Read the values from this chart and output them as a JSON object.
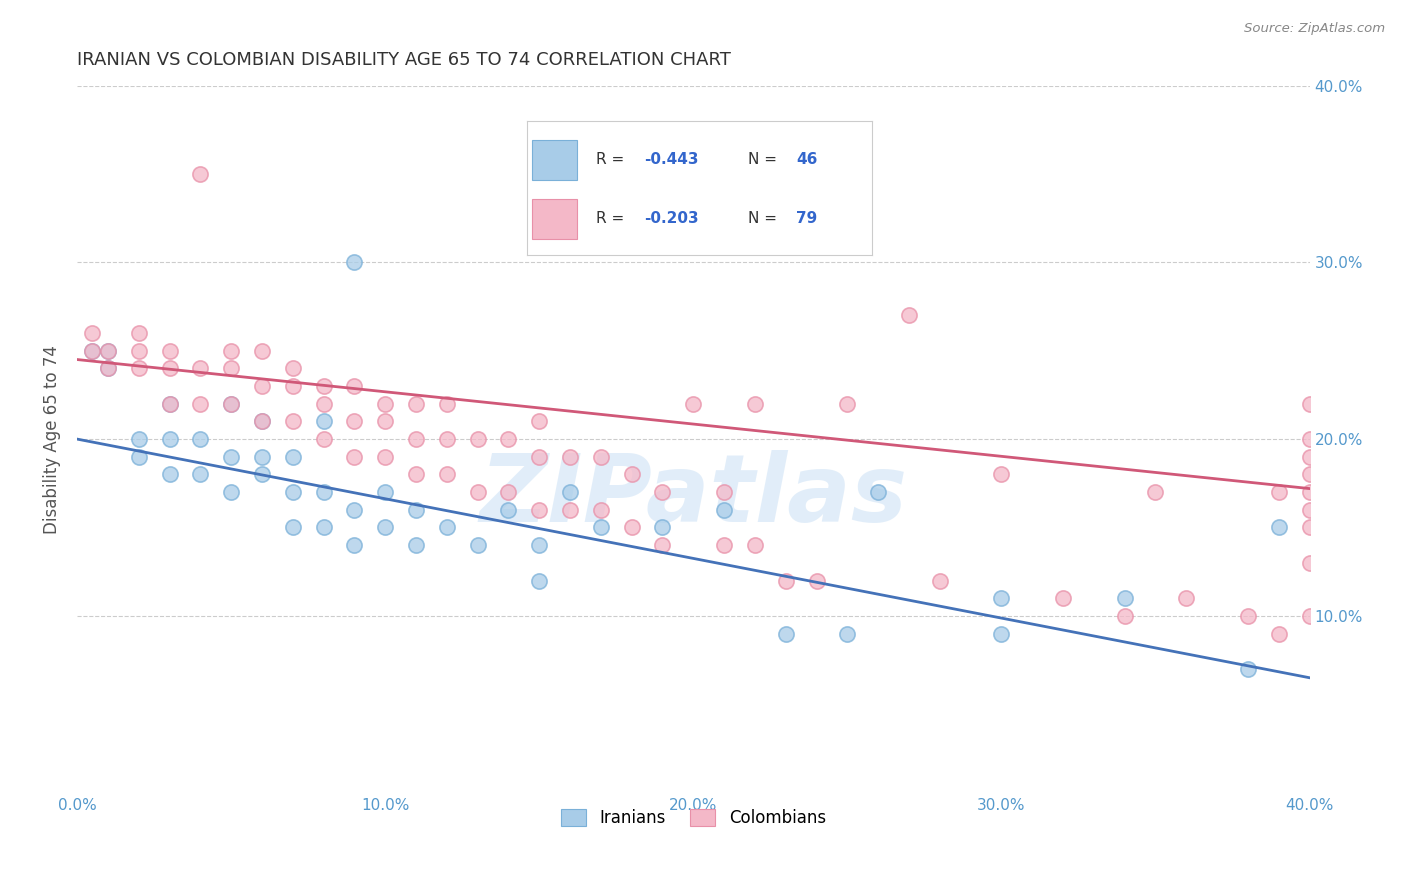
{
  "title": "IRANIAN VS COLOMBIAN DISABILITY AGE 65 TO 74 CORRELATION CHART",
  "source": "Source: ZipAtlas.com",
  "ylabel": "Disability Age 65 to 74",
  "xlim": [
    0.0,
    0.4
  ],
  "ylim": [
    0.0,
    0.4
  ],
  "xtick_labels": [
    "0.0%",
    "10.0%",
    "20.0%",
    "30.0%",
    "40.0%"
  ],
  "xtick_vals": [
    0.0,
    0.1,
    0.2,
    0.3,
    0.4
  ],
  "ytick_labels_right": [
    "10.0%",
    "20.0%",
    "30.0%",
    "40.0%"
  ],
  "ytick_vals_right": [
    0.1,
    0.2,
    0.3,
    0.4
  ],
  "iranian_color": "#a8cce8",
  "colombian_color": "#f4b8c8",
  "iranian_edge_color": "#7ab0d8",
  "colombian_edge_color": "#e890a8",
  "iranian_line_color": "#4472b8",
  "colombian_line_color": "#d05878",
  "watermark": "ZIPatlas",
  "background_color": "#ffffff",
  "grid_color": "#cccccc",
  "title_color": "#333333",
  "axis_label_color": "#5599cc",
  "legend_text_color": "#3366cc",
  "legend_label_color": "#333333",
  "iranian_scatter_x": [
    0.005,
    0.01,
    0.01,
    0.02,
    0.02,
    0.03,
    0.03,
    0.03,
    0.04,
    0.04,
    0.05,
    0.05,
    0.05,
    0.06,
    0.06,
    0.06,
    0.07,
    0.07,
    0.07,
    0.08,
    0.08,
    0.08,
    0.09,
    0.09,
    0.09,
    0.1,
    0.1,
    0.11,
    0.11,
    0.12,
    0.13,
    0.14,
    0.15,
    0.15,
    0.16,
    0.17,
    0.19,
    0.21,
    0.23,
    0.25,
    0.26,
    0.3,
    0.3,
    0.34,
    0.38,
    0.39
  ],
  "iranian_scatter_y": [
    0.25,
    0.25,
    0.24,
    0.19,
    0.2,
    0.22,
    0.2,
    0.18,
    0.18,
    0.2,
    0.17,
    0.19,
    0.22,
    0.18,
    0.19,
    0.21,
    0.15,
    0.17,
    0.19,
    0.15,
    0.17,
    0.21,
    0.14,
    0.16,
    0.3,
    0.15,
    0.17,
    0.14,
    0.16,
    0.15,
    0.14,
    0.16,
    0.12,
    0.14,
    0.17,
    0.15,
    0.15,
    0.16,
    0.09,
    0.09,
    0.17,
    0.09,
    0.11,
    0.11,
    0.07,
    0.15
  ],
  "colombian_scatter_x": [
    0.005,
    0.005,
    0.01,
    0.01,
    0.02,
    0.02,
    0.02,
    0.03,
    0.03,
    0.03,
    0.04,
    0.04,
    0.04,
    0.05,
    0.05,
    0.05,
    0.06,
    0.06,
    0.06,
    0.07,
    0.07,
    0.07,
    0.08,
    0.08,
    0.08,
    0.09,
    0.09,
    0.09,
    0.1,
    0.1,
    0.1,
    0.11,
    0.11,
    0.11,
    0.12,
    0.12,
    0.12,
    0.13,
    0.13,
    0.14,
    0.14,
    0.15,
    0.15,
    0.15,
    0.16,
    0.16,
    0.17,
    0.17,
    0.18,
    0.18,
    0.19,
    0.19,
    0.2,
    0.21,
    0.21,
    0.22,
    0.22,
    0.23,
    0.24,
    0.25,
    0.27,
    0.28,
    0.3,
    0.32,
    0.34,
    0.35,
    0.36,
    0.38,
    0.39,
    0.39,
    0.4,
    0.4,
    0.4,
    0.4,
    0.4,
    0.4,
    0.4,
    0.4,
    0.4
  ],
  "colombian_scatter_y": [
    0.25,
    0.26,
    0.24,
    0.25,
    0.24,
    0.25,
    0.26,
    0.22,
    0.24,
    0.25,
    0.22,
    0.24,
    0.35,
    0.22,
    0.24,
    0.25,
    0.21,
    0.23,
    0.25,
    0.21,
    0.23,
    0.24,
    0.2,
    0.22,
    0.23,
    0.19,
    0.21,
    0.23,
    0.19,
    0.21,
    0.22,
    0.18,
    0.2,
    0.22,
    0.18,
    0.2,
    0.22,
    0.17,
    0.2,
    0.17,
    0.2,
    0.16,
    0.19,
    0.21,
    0.16,
    0.19,
    0.16,
    0.19,
    0.15,
    0.18,
    0.14,
    0.17,
    0.22,
    0.14,
    0.17,
    0.14,
    0.22,
    0.12,
    0.12,
    0.22,
    0.27,
    0.12,
    0.18,
    0.11,
    0.1,
    0.17,
    0.11,
    0.1,
    0.09,
    0.17,
    0.1,
    0.13,
    0.15,
    0.17,
    0.18,
    0.19,
    0.2,
    0.22,
    0.16
  ],
  "iranian_line_x": [
    0.0,
    0.4
  ],
  "iranian_line_y": [
    0.2,
    0.065
  ],
  "colombian_line_x": [
    0.0,
    0.4
  ],
  "colombian_line_y": [
    0.245,
    0.172
  ]
}
